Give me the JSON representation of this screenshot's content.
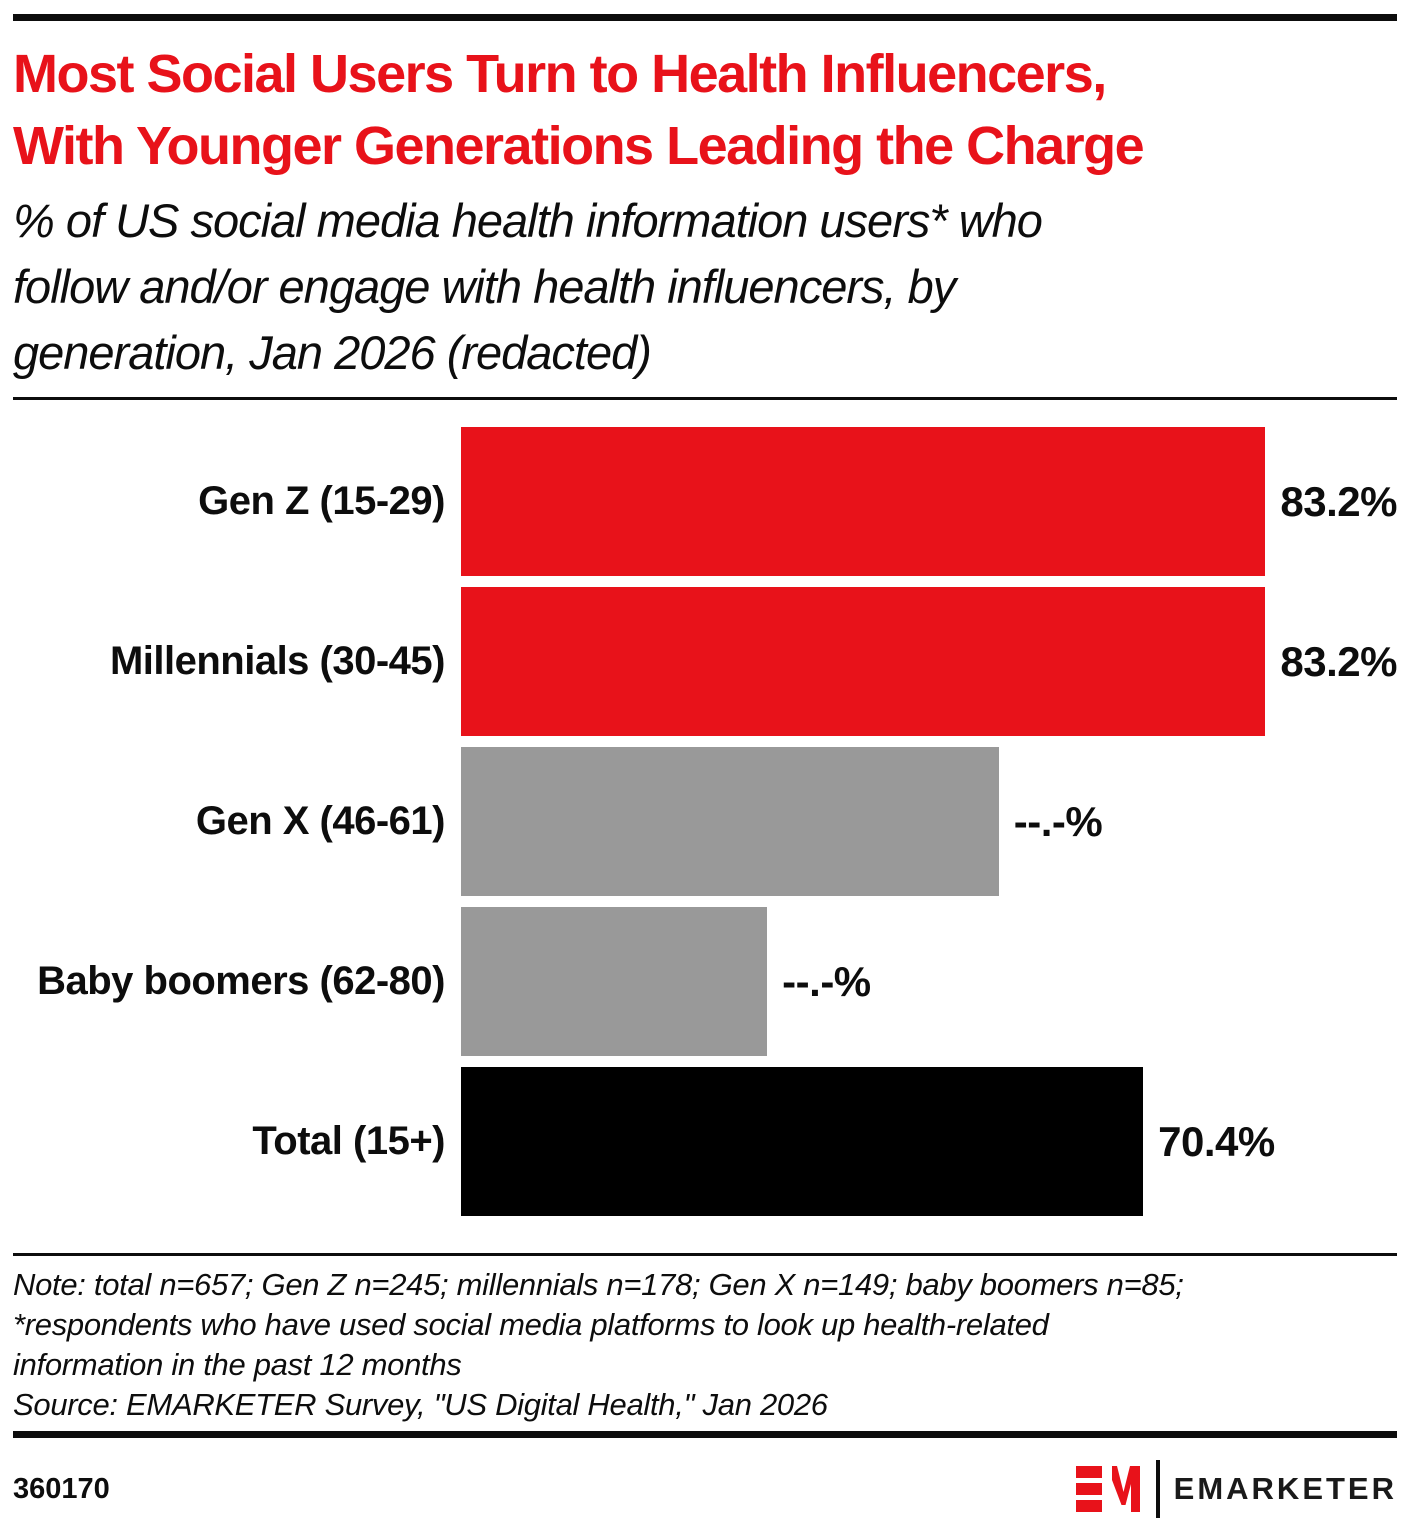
{
  "header": {
    "title": "Most Social Users Turn to Health Influencers,\nWith Younger Generations Leading the Charge",
    "subtitle": "% of US social media health information users* who\nfollow and/or engage with health influencers, by\ngeneration, Jan 2026 (redacted)",
    "title_color": "#e8121a"
  },
  "chart_data": {
    "type": "bar",
    "orientation": "horizontal",
    "title": "Most Social Users Turn to Health Influencers, With Younger Generations Leading the Charge",
    "subtitle": "% of US social media health information users* who follow and/or engage with health influencers, by generation, Jan 2026 (redacted)",
    "categories": [
      "Gen Z (15-29)",
      "Millennials (30-45)",
      "Gen X (46-61)",
      "Baby boomers (62-80)",
      "Total (15+)"
    ],
    "values": [
      83.2,
      83.2,
      null,
      null,
      70.4
    ],
    "value_labels": [
      "83.2%",
      "83.2%",
      "--.-%",
      "--.-%",
      "70.4%"
    ],
    "render_values": [
      83.2,
      83.2,
      55.5,
      31.6,
      70.4
    ],
    "bar_colors": [
      "#e8121a",
      "#e8121a",
      "#999999",
      "#999999",
      "#000000"
    ],
    "axis_max": 96.6,
    "xlabel": "",
    "ylabel": "",
    "grid": false,
    "legend": "none",
    "redacted_note": "Gen X and baby boomer values shown as --.-% (redacted); gray bar lengths estimated from pixels"
  },
  "footnote": {
    "text": "Note: total n=657; Gen Z n=245; millennials n=178; Gen X n=149; baby boomers n=85;\n*respondents who have used social media platforms to look up health-related\ninformation in the past 12 months\nSource: EMARKETER Survey, \"US Digital Health,\" Jan 2026"
  },
  "footer": {
    "chart_id": "360170",
    "brand_name": "EMARKETER",
    "brand_red": "#e8121a"
  }
}
